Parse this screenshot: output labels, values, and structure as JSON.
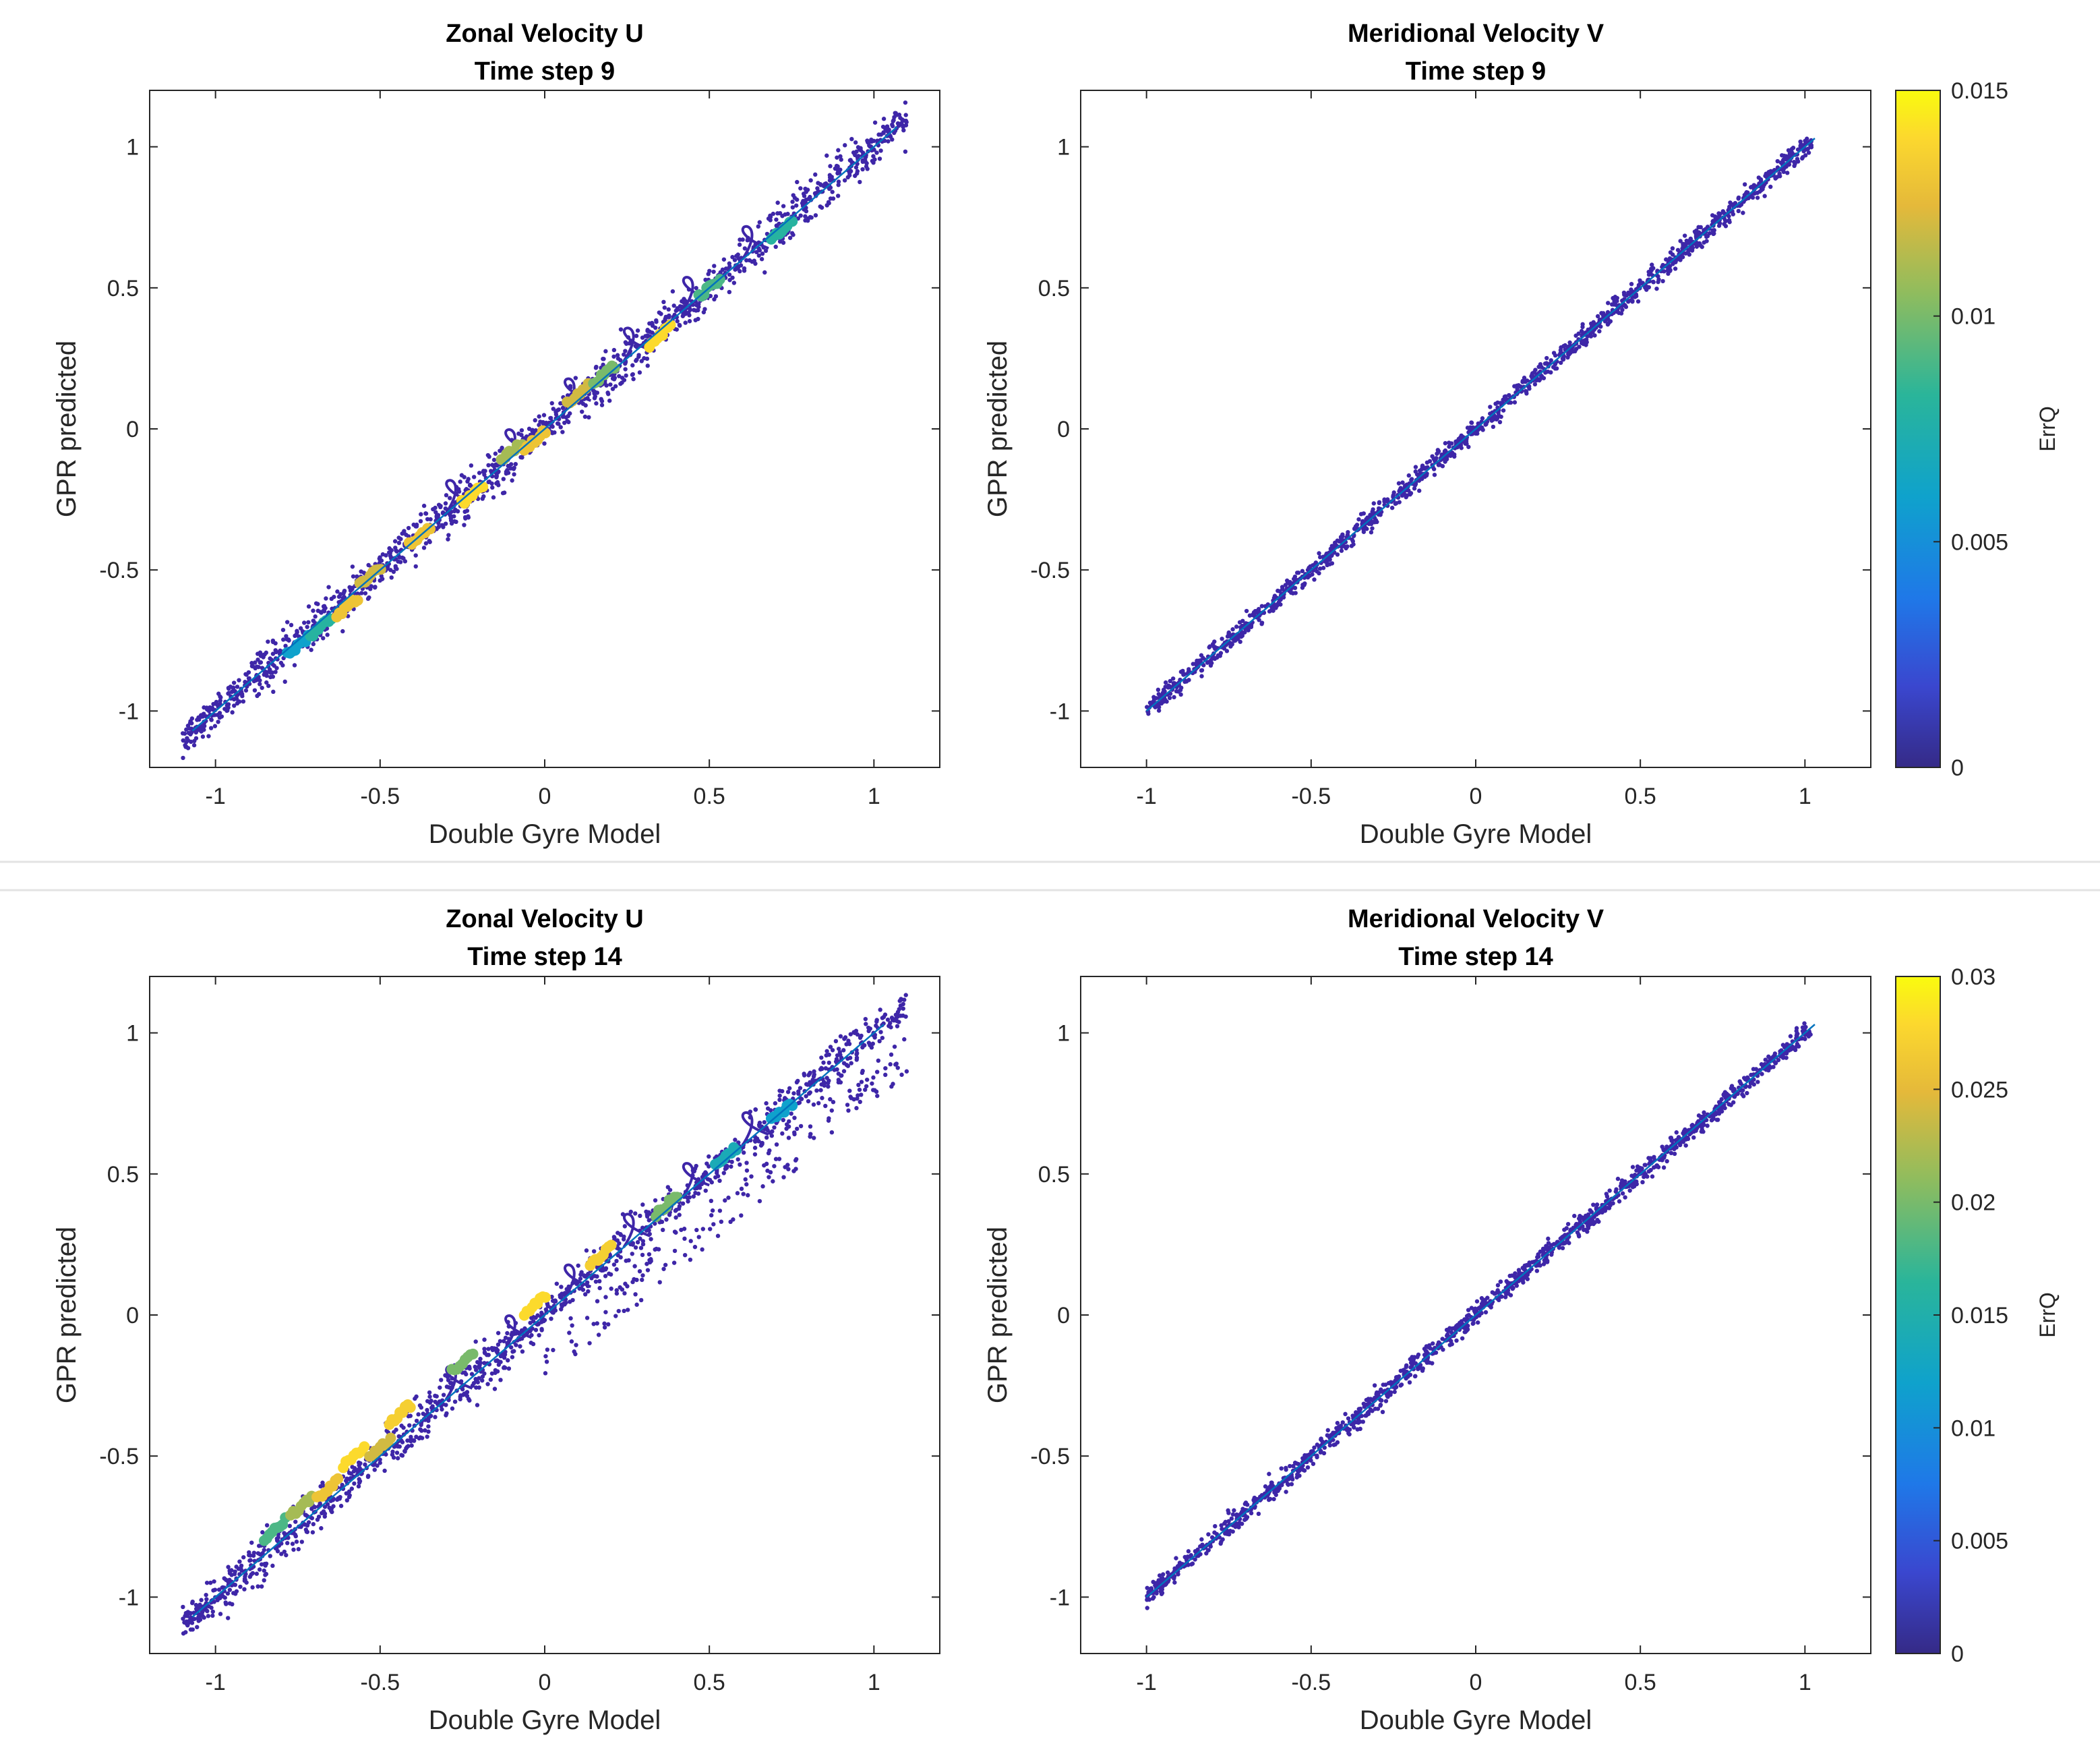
{
  "figure": {
    "dividers": 2
  },
  "chart_data": [
    {
      "id": "u9",
      "type": "scatter",
      "title_line1": "Zonal Velocity U",
      "title_line2": "Time step 9",
      "xlabel": "Double Gyre Model",
      "ylabel": "GPR predicted",
      "xlim": [
        -1.2,
        1.2
      ],
      "ylim": [
        -1.2,
        1.2
      ],
      "xticks": [
        -1,
        -0.5,
        0,
        0.5,
        1
      ],
      "xtick_labels": [
        "-1",
        "-0.5",
        "0",
        "0.5",
        "1"
      ],
      "yticks": [
        -1,
        -0.5,
        0,
        0.5,
        1
      ],
      "ytick_labels": [
        "-1",
        "-0.5",
        "0",
        "0.5",
        "1"
      ],
      "reference_line": [
        [
          -1.07,
          -1.07
        ],
        [
          1.07,
          1.07
        ]
      ],
      "point_color": "#3e26a8",
      "error_clusters": [
        {
          "x": -0.75,
          "y": -0.77,
          "err": 0.006
        },
        {
          "x": -0.68,
          "y": -0.7,
          "err": 0.008
        },
        {
          "x": -0.6,
          "y": -0.63,
          "err": 0.013
        },
        {
          "x": -0.53,
          "y": -0.52,
          "err": 0.012
        },
        {
          "x": -0.38,
          "y": -0.38,
          "err": 0.013
        },
        {
          "x": -0.22,
          "y": -0.23,
          "err": 0.014
        },
        {
          "x": -0.1,
          "y": -0.08,
          "err": 0.011
        },
        {
          "x": -0.03,
          "y": -0.04,
          "err": 0.013
        },
        {
          "x": 0.1,
          "y": 0.12,
          "err": 0.012
        },
        {
          "x": 0.18,
          "y": 0.19,
          "err": 0.01
        },
        {
          "x": 0.35,
          "y": 0.33,
          "err": 0.014
        },
        {
          "x": 0.5,
          "y": 0.5,
          "err": 0.009
        },
        {
          "x": 0.72,
          "y": 0.7,
          "err": 0.008
        }
      ],
      "colorbar": null
    },
    {
      "id": "v9",
      "type": "scatter",
      "title_line1": "Meridional Velocity V",
      "title_line2": "Time step 9",
      "xlabel": "Double Gyre Model",
      "ylabel": "GPR predicted",
      "xlim": [
        -1.2,
        1.2
      ],
      "ylim": [
        -1.2,
        1.2
      ],
      "xticks": [
        -1,
        -0.5,
        0,
        0.5,
        1
      ],
      "xtick_labels": [
        "-1",
        "-0.5",
        "0",
        "0.5",
        "1"
      ],
      "yticks": [
        -1,
        -0.5,
        0,
        0.5,
        1
      ],
      "ytick_labels": [
        "-1",
        "-0.5",
        "0",
        "0.5",
        "1"
      ],
      "reference_line": [
        [
          -1,
          -1
        ],
        [
          1.03,
          1.03
        ]
      ],
      "point_color": "#3e26a8",
      "error_clusters": [],
      "colorbar": {
        "label": "ErrQ",
        "range": [
          0,
          0.015
        ],
        "ticks": [
          0,
          0.005,
          0.01,
          0.015
        ],
        "tick_labels": [
          "0",
          "0.005",
          "0.01",
          "0.015"
        ]
      }
    },
    {
      "id": "u14",
      "type": "scatter",
      "title_line1": "Zonal Velocity U",
      "title_line2": "Time step 14",
      "xlabel": "Double Gyre Model",
      "ylabel": "GPR predicted",
      "xlim": [
        -1.2,
        1.2
      ],
      "ylim": [
        -1.2,
        1.2
      ],
      "xticks": [
        -1,
        -0.5,
        0,
        0.5,
        1
      ],
      "xtick_labels": [
        "-1",
        "-0.5",
        "0",
        "0.5",
        "1"
      ],
      "yticks": [
        -1,
        -0.5,
        0,
        0.5,
        1
      ],
      "ytick_labels": [
        "-1",
        "-0.5",
        "0",
        "0.5",
        "1"
      ],
      "reference_line": [
        [
          -1.07,
          -1.07
        ],
        [
          1.03,
          1.03
        ]
      ],
      "point_color": "#3e26a8",
      "error_clusters": [
        {
          "x": -0.82,
          "y": -0.76,
          "err": 0.018
        },
        {
          "x": -0.74,
          "y": -0.68,
          "err": 0.022
        },
        {
          "x": -0.66,
          "y": -0.62,
          "err": 0.026
        },
        {
          "x": -0.58,
          "y": -0.5,
          "err": 0.028
        },
        {
          "x": -0.5,
          "y": -0.47,
          "err": 0.024
        },
        {
          "x": -0.44,
          "y": -0.35,
          "err": 0.027
        },
        {
          "x": -0.25,
          "y": -0.17,
          "err": 0.02
        },
        {
          "x": -0.03,
          "y": 0.04,
          "err": 0.028
        },
        {
          "x": 0.17,
          "y": 0.21,
          "err": 0.027
        },
        {
          "x": 0.37,
          "y": 0.39,
          "err": 0.02
        },
        {
          "x": 0.55,
          "y": 0.56,
          "err": 0.014
        },
        {
          "x": 0.72,
          "y": 0.72,
          "err": 0.012
        }
      ],
      "colorbar": null
    },
    {
      "id": "v14",
      "type": "scatter",
      "title_line1": "Meridional Velocity V",
      "title_line2": "Time step 14",
      "xlabel": "Double Gyre Model",
      "ylabel": "GPR predicted",
      "xlim": [
        -1.2,
        1.2
      ],
      "ylim": [
        -1.2,
        1.2
      ],
      "xticks": [
        -1,
        -0.5,
        0,
        0.5,
        1
      ],
      "xtick_labels": [
        "-1",
        "-0.5",
        "0",
        "0.5",
        "1"
      ],
      "yticks": [
        -1,
        -0.5,
        0,
        0.5,
        1
      ],
      "ytick_labels": [
        "-1",
        "-0.5",
        "0",
        "0.5",
        "1"
      ],
      "reference_line": [
        [
          -1,
          -1
        ],
        [
          1.03,
          1.03
        ]
      ],
      "point_color": "#3e26a8",
      "error_clusters": [],
      "colorbar": {
        "label": "ErrQ",
        "range": [
          0,
          0.03
        ],
        "ticks": [
          0,
          0.005,
          0.01,
          0.015,
          0.02,
          0.025,
          0.03
        ],
        "tick_labels": [
          "0",
          "0.005",
          "0.01",
          "0.015",
          "0.02",
          "0.025",
          "0.03"
        ]
      }
    }
  ]
}
